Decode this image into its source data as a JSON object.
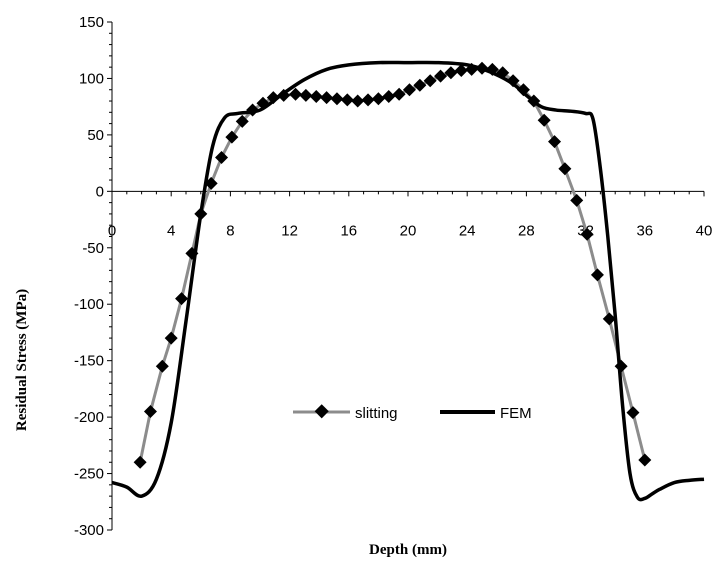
{
  "chart_data": {
    "type": "line",
    "xlabel": "Depth (mm)",
    "ylabel": "Residual Stress (MPa)",
    "xlim": [
      0,
      40
    ],
    "ylim": [
      -300,
      150
    ],
    "x_ticks": [
      0,
      4,
      8,
      12,
      16,
      20,
      24,
      28,
      32,
      36,
      40
    ],
    "y_ticks": [
      150,
      100,
      50,
      0,
      -50,
      -100,
      -150,
      -200,
      -250,
      -300
    ],
    "grid": false,
    "legend": "center-bottom",
    "colors": {
      "slitting": "#8c8c8c",
      "marker": "#000000",
      "fem": "#000000"
    },
    "series": [
      {
        "name": "slitting",
        "style": "line-with-diamond-markers",
        "x": [
          1.9,
          2.6,
          3.4,
          4.0,
          4.7,
          5.4,
          6.0,
          6.7,
          7.4,
          8.1,
          8.8,
          9.5,
          10.2,
          10.9,
          11.6,
          12.4,
          13.1,
          13.8,
          14.5,
          15.2,
          15.9,
          16.6,
          17.3,
          18.0,
          18.7,
          19.4,
          20.1,
          20.8,
          21.5,
          22.2,
          22.9,
          23.6,
          24.3,
          25.0,
          25.7,
          26.4,
          27.1,
          27.8,
          28.5,
          29.2,
          29.9,
          30.6,
          31.4,
          32.1,
          32.8,
          33.6,
          34.4,
          35.2,
          36.0,
          36.8,
          37.5
        ],
        "y": [
          -240,
          -195,
          -155,
          -130,
          -95,
          -55,
          -20,
          7,
          30,
          48,
          62,
          72,
          78,
          83,
          85,
          86,
          85,
          84,
          83,
          82,
          81,
          80,
          81,
          82,
          84,
          86,
          90,
          94,
          98,
          102,
          105,
          107,
          108,
          109,
          108,
          105,
          98,
          90,
          80,
          63,
          44,
          20,
          -8,
          -38,
          -74,
          -113,
          -155,
          -196,
          -238,
          null,
          null
        ]
      },
      {
        "name": "FEM",
        "style": "line",
        "x": [
          0,
          1.0,
          2.0,
          3.0,
          4.0,
          5.0,
          6.0,
          6.8,
          7.6,
          8.5,
          10.0,
          11.5,
          13.0,
          14.5,
          16.0,
          18.0,
          20.0,
          22.0,
          24.0,
          25.5,
          27.0,
          28.0,
          29.0,
          30.0,
          31.0,
          32.0,
          32.5,
          33.0,
          33.5,
          34.0,
          34.5,
          35.0,
          35.5,
          36.0,
          36.5,
          37.0,
          38.0,
          39.0,
          40.0
        ],
        "y": [
          -258,
          -262,
          -270,
          -255,
          -205,
          -115,
          -20,
          40,
          65,
          69,
          72,
          86,
          99,
          108,
          112,
          114,
          114,
          114,
          112,
          106,
          96,
          85,
          75,
          72,
          71,
          69,
          64,
          20,
          -40,
          -110,
          -190,
          -250,
          -271,
          -272,
          -268,
          -264,
          -258,
          -256,
          -255
        ]
      }
    ]
  }
}
